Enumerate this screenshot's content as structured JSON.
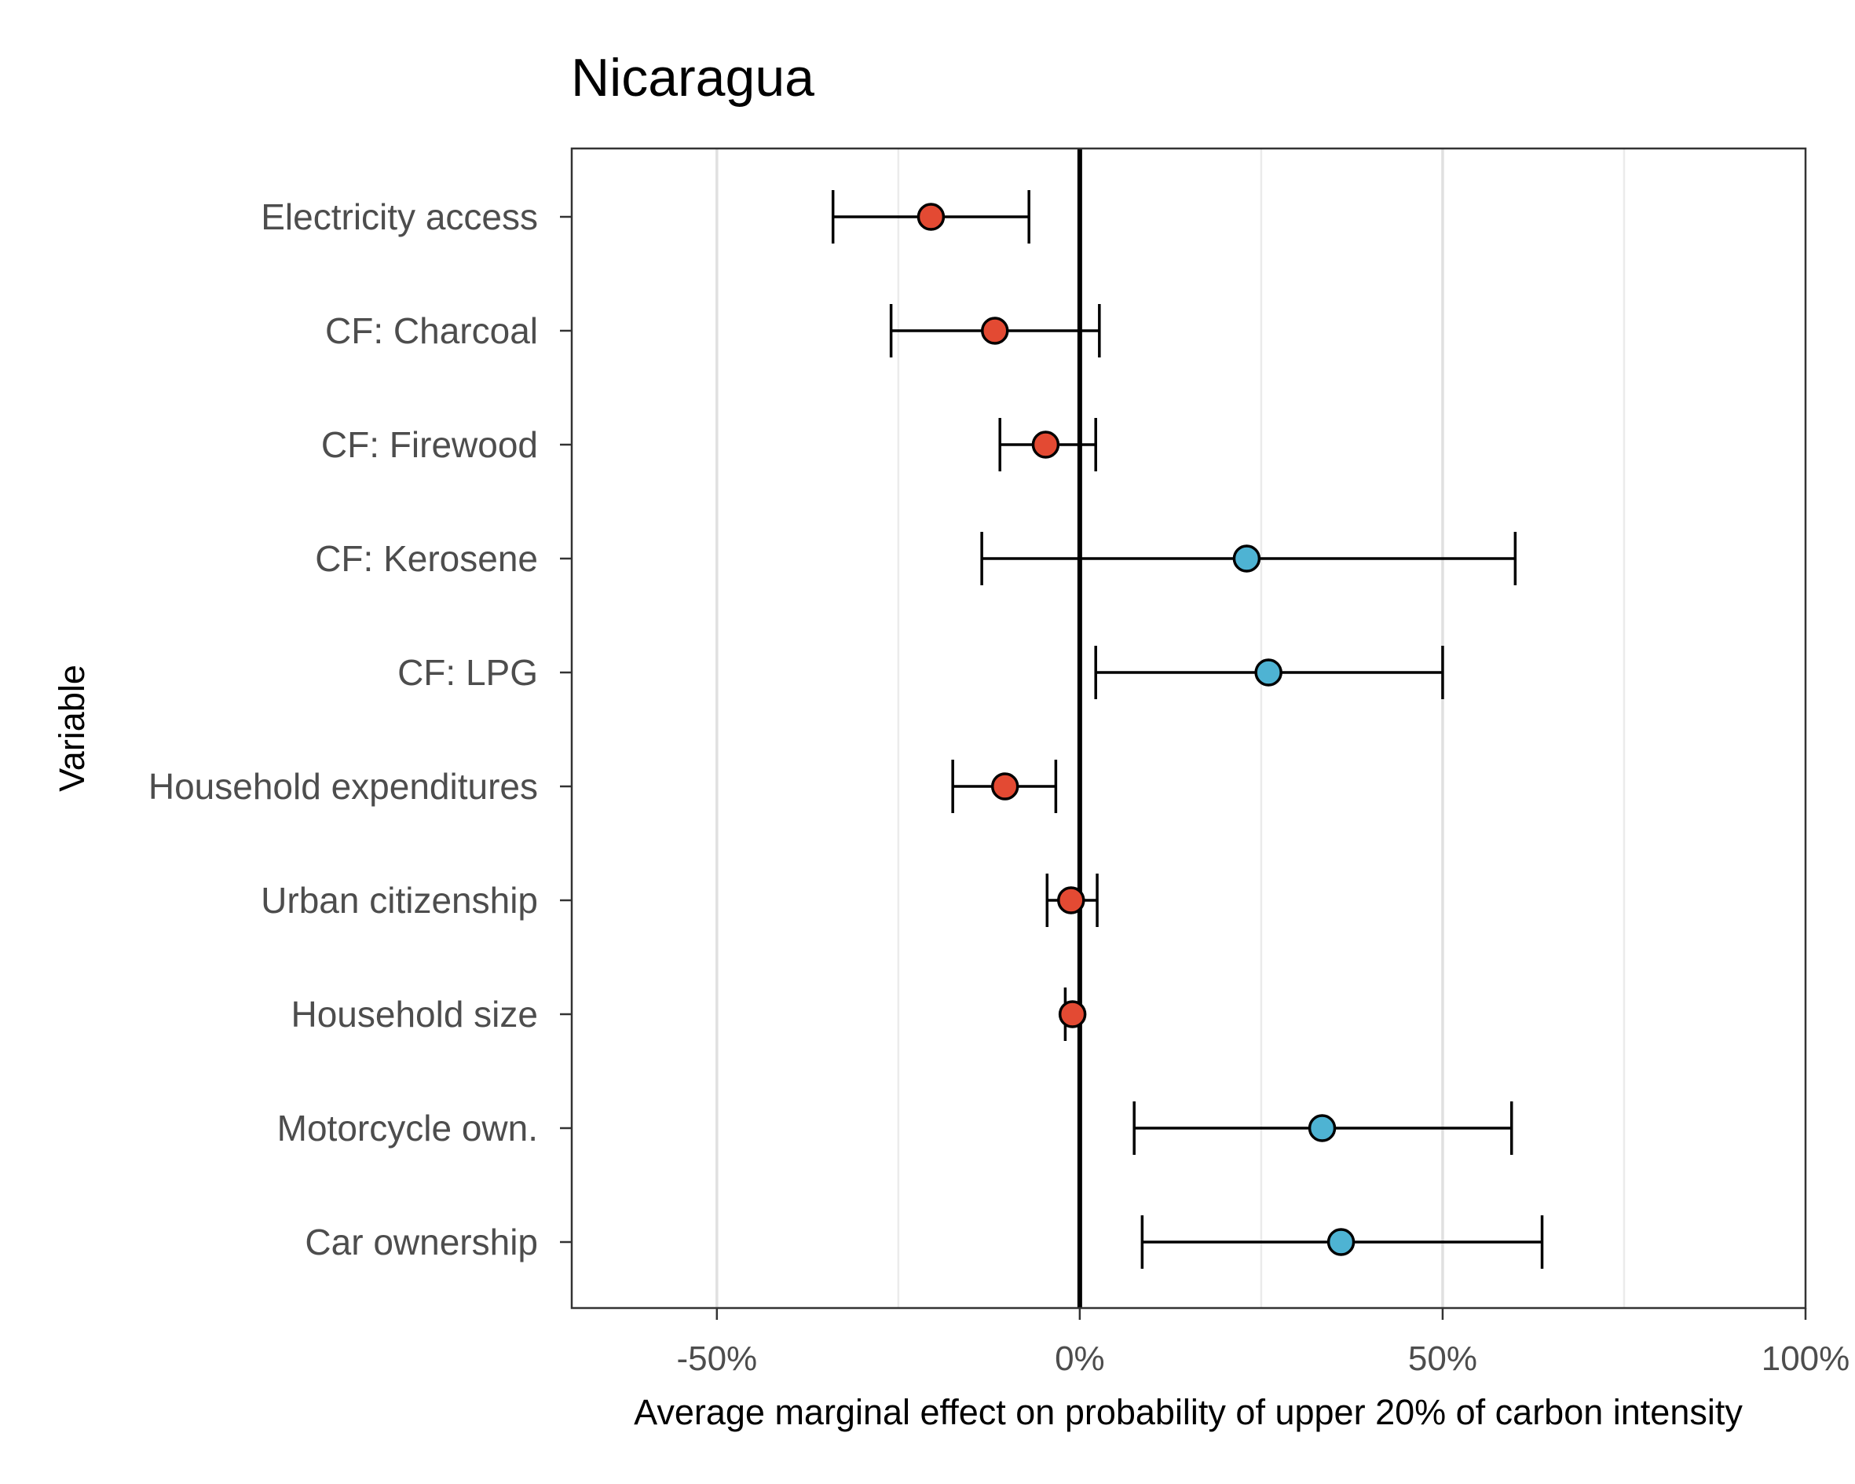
{
  "chart_data": {
    "type": "scatter",
    "title": "Nicaragua",
    "xlabel": "Average marginal effect on probability of upper 20% of carbon intensity",
    "ylabel": "Variable",
    "xlim": [
      -0.7,
      1.0
    ],
    "xticks": [
      -0.5,
      0,
      0.5,
      1.0
    ],
    "xtick_labels": [
      "-50%",
      "0%",
      "50%",
      "100%"
    ],
    "grid": "vertical major and minor lines",
    "reference_line": 0,
    "colors": {
      "negative": "#e34a33",
      "positive": "#4eb3d3"
    },
    "categories": [
      "Electricity access",
      "CF: Charcoal",
      "CF: Firewood",
      "CF: Kerosene",
      "CF: LPG",
      "Household expenditures",
      "Urban citizenship",
      "Household size",
      "Motorcycle own.",
      "Car ownership"
    ],
    "points": [
      {
        "estimate": -0.205,
        "lower": -0.34,
        "upper": -0.07
      },
      {
        "estimate": -0.117,
        "lower": -0.26,
        "upper": 0.027
      },
      {
        "estimate": -0.047,
        "lower": -0.11,
        "upper": 0.022
      },
      {
        "estimate": 0.23,
        "lower": -0.135,
        "upper": 0.6
      },
      {
        "estimate": 0.26,
        "lower": 0.022,
        "upper": 0.5
      },
      {
        "estimate": -0.103,
        "lower": -0.175,
        "upper": -0.033
      },
      {
        "estimate": -0.012,
        "lower": -0.045,
        "upper": 0.024
      },
      {
        "estimate": -0.01,
        "lower": -0.02,
        "upper": 0.0
      },
      {
        "estimate": 0.334,
        "lower": 0.075,
        "upper": 0.595
      },
      {
        "estimate": 0.36,
        "lower": 0.086,
        "upper": 0.637
      }
    ]
  }
}
